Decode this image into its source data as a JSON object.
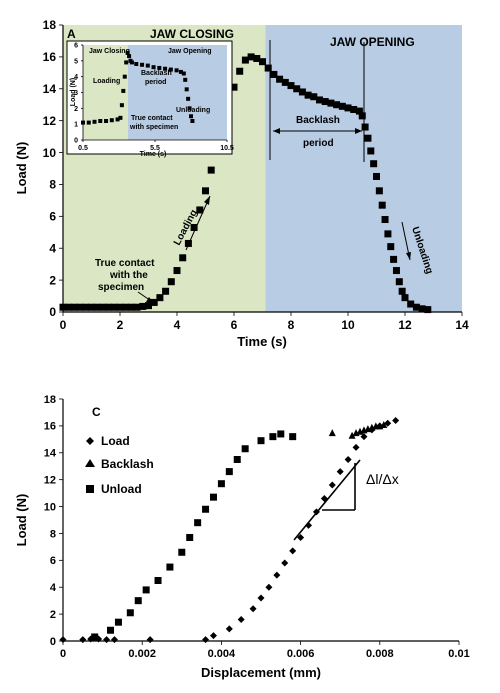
{
  "colors": {
    "closing_bg": "#dbe6c4",
    "opening_bg": "#b8cce4",
    "marker": "#000000",
    "axis": "#000000"
  },
  "chart_data": [
    {
      "type": "scatter",
      "panel_label": "A",
      "xlabel": "Time (s)",
      "ylabel": "Load (N)",
      "xlim": [
        0,
        14
      ],
      "ylim": [
        0,
        18
      ],
      "xticks": [
        "0",
        "2",
        "4",
        "6",
        "8",
        "10",
        "12",
        "14"
      ],
      "yticks": [
        "0",
        "2",
        "4",
        "6",
        "8",
        "10",
        "12",
        "14",
        "16",
        "18"
      ],
      "region_labels": [
        "JAW CLOSING",
        "JAW OPENING"
      ],
      "closing_region": [
        0,
        7.1
      ],
      "opening_region": [
        7.1,
        14
      ],
      "annotations": {
        "contact": [
          "True contact",
          "with the",
          "specimen"
        ],
        "loading": "Loading",
        "backlash": [
          "Backlash",
          "period"
        ],
        "unloading": "Unloading"
      },
      "series": [
        {
          "x": [
            0,
            0.2,
            0.4,
            0.6,
            0.8,
            1.0,
            1.2,
            1.4,
            1.6,
            1.8,
            2.0,
            2.2,
            2.4,
            2.6,
            2.8,
            3.0,
            3.2,
            3.4,
            3.6,
            3.8,
            4.0,
            4.2,
            4.4,
            4.6,
            4.8,
            5.0,
            5.2,
            5.4,
            5.6,
            5.8,
            6.0,
            6.2,
            6.4,
            6.6,
            6.8,
            7.0,
            7.2,
            7.4,
            7.6,
            7.8,
            8.0,
            8.2,
            8.4,
            8.6,
            8.8,
            9.0,
            9.2,
            9.4,
            9.6,
            9.8,
            10.0,
            10.2,
            10.4,
            10.5,
            10.6,
            10.7,
            10.8,
            10.9,
            11.0,
            11.1,
            11.2,
            11.3,
            11.4,
            11.5,
            11.6,
            11.7,
            11.8,
            11.9,
            12.0,
            12.2,
            12.4,
            12.6,
            12.8
          ],
          "y": [
            0.3,
            0.3,
            0.3,
            0.3,
            0.3,
            0.3,
            0.3,
            0.3,
            0.3,
            0.3,
            0.3,
            0.3,
            0.3,
            0.3,
            0.35,
            0.4,
            0.6,
            0.9,
            1.3,
            1.9,
            2.6,
            3.4,
            4.3,
            5.3,
            6.4,
            7.6,
            8.9,
            10.2,
            11.6,
            12.9,
            14.1,
            15.1,
            15.8,
            16.0,
            15.9,
            15.7,
            15.3,
            14.9,
            14.6,
            14.4,
            14.2,
            14.0,
            13.8,
            13.6,
            13.5,
            13.3,
            13.2,
            13.1,
            13.0,
            12.9,
            12.8,
            12.7,
            12.6,
            12.3,
            11.6,
            10.9,
            10.1,
            9.3,
            8.5,
            7.6,
            6.7,
            5.8,
            4.9,
            4.1,
            3.3,
            2.6,
            1.9,
            1.3,
            0.9,
            0.5,
            0.3,
            0.2,
            0.15
          ]
        }
      ],
      "inset": {
        "xlim": [
          0.5,
          10.5
        ],
        "ylim": [
          0,
          6
        ],
        "xticks": [
          "0.5",
          "5.5",
          "10.5"
        ],
        "yticks": [
          "0",
          "1",
          "2",
          "3",
          "4",
          "5",
          "6"
        ],
        "xlabel": "Time (s)",
        "ylabel": "Load (N)",
        "labels": {
          "jaw_closing": "Jaw Closing",
          "jaw_opening": "Jaw Opening",
          "loading": "Loading",
          "backlash": [
            "Backlash",
            "period"
          ],
          "unloading": "Unloading",
          "contact": [
            "True contact",
            "with specimen"
          ]
        },
        "x": [
          0.5,
          0.9,
          1.3,
          1.7,
          2.1,
          2.5,
          2.9,
          3.1,
          3.2,
          3.3,
          3.4,
          3.5,
          3.6,
          3.7,
          3.8,
          3.9,
          4.2,
          4.6,
          5.0,
          5.4,
          5.8,
          6.2,
          6.6,
          7.0,
          7.3,
          7.5,
          7.6,
          7.7,
          7.8,
          7.9,
          8.0,
          8.1
        ],
        "y": [
          1.1,
          1.1,
          1.15,
          1.2,
          1.2,
          1.25,
          1.3,
          1.4,
          2.2,
          3.1,
          4.0,
          4.9,
          5.5,
          5.3,
          5.0,
          4.9,
          4.8,
          4.75,
          4.7,
          4.6,
          4.55,
          4.5,
          4.45,
          4.4,
          4.3,
          4.2,
          3.8,
          3.2,
          2.6,
          2.0,
          1.5,
          1.2
        ]
      }
    },
    {
      "type": "scatter",
      "panel_label": "C",
      "xlabel": "Displacement (mm)",
      "ylabel": "Load (N)",
      "xlim": [
        0,
        0.01
      ],
      "ylim": [
        0,
        18
      ],
      "xticks": [
        "0",
        "0.002",
        "0.004",
        "0.006",
        "0.008",
        "0.01"
      ],
      "yticks": [
        "0",
        "2",
        "4",
        "6",
        "8",
        "10",
        "12",
        "14",
        "16",
        "18"
      ],
      "slope_label": "Δl/Δx",
      "series": [
        {
          "name": "Load",
          "marker": "diamond",
          "x": [
            0,
            0.0005,
            0.0007,
            0.0009,
            0.0011,
            0.0013,
            0.0022,
            0.0036,
            0.0038,
            0.0042,
            0.0045,
            0.0048,
            0.005,
            0.0052,
            0.0054,
            0.0056,
            0.0058,
            0.006,
            0.0062,
            0.0064,
            0.0066,
            0.0068,
            0.007,
            0.0072,
            0.0074,
            0.0076,
            0.0078,
            0.008,
            0.0082,
            0.0084
          ],
          "y": [
            0.1,
            0.1,
            0.15,
            0.15,
            0.1,
            0.1,
            0.1,
            0.1,
            0.4,
            0.9,
            1.6,
            2.4,
            3.2,
            4.0,
            4.9,
            5.8,
            6.7,
            7.7,
            8.6,
            9.6,
            10.6,
            11.6,
            12.6,
            13.5,
            14.4,
            15.2,
            15.7,
            16.0,
            16.2,
            16.4
          ]
        },
        {
          "name": "Backlash",
          "marker": "triangle",
          "x": [
            0.0068,
            0.0073,
            0.0074,
            0.0075,
            0.0076,
            0.0077,
            0.0078,
            0.0079,
            0.008,
            0.0081
          ],
          "y": [
            15.5,
            15.3,
            15.5,
            15.6,
            15.7,
            15.8,
            15.9,
            16.0,
            16.0,
            16.1
          ]
        },
        {
          "name": "Unload",
          "marker": "square",
          "x": [
            0.0008,
            0.0012,
            0.0014,
            0.0017,
            0.0019,
            0.0021,
            0.0024,
            0.0027,
            0.003,
            0.0032,
            0.0034,
            0.0036,
            0.0038,
            0.004,
            0.0042,
            0.0044,
            0.0046,
            0.005,
            0.0053,
            0.0055,
            0.0058
          ],
          "y": [
            0.3,
            0.8,
            1.4,
            2.1,
            3.0,
            3.8,
            4.5,
            5.5,
            6.6,
            7.7,
            8.8,
            9.8,
            10.7,
            11.7,
            12.6,
            13.5,
            14.3,
            14.9,
            15.2,
            15.4,
            15.2
          ]
        }
      ]
    }
  ]
}
